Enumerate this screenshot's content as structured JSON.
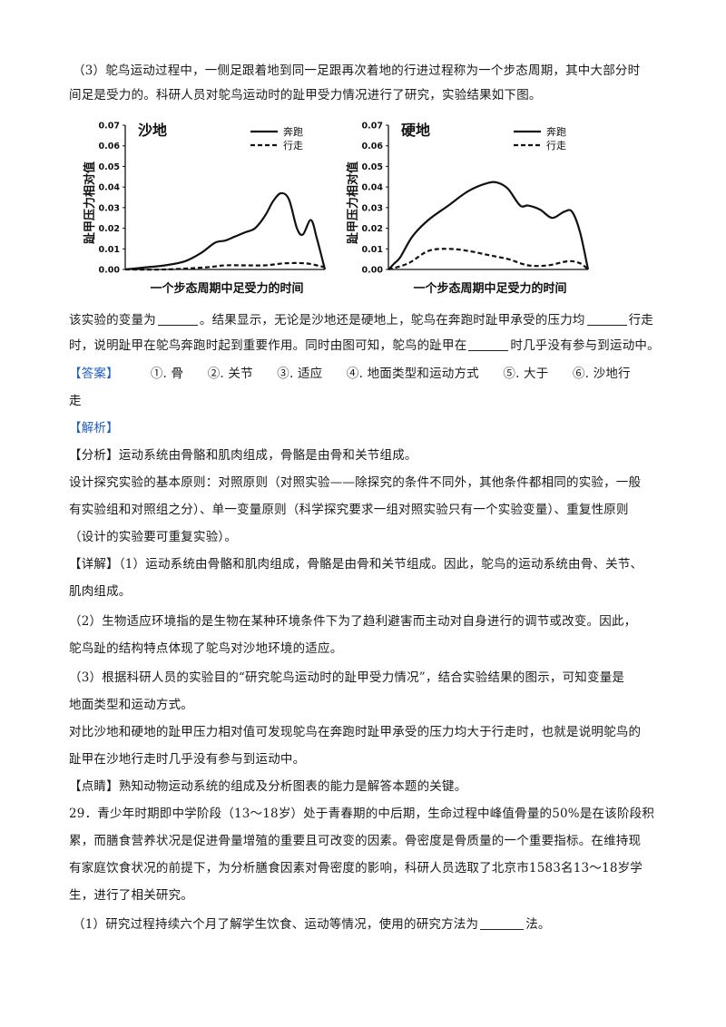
{
  "intro": {
    "line1": "（3）鸵鸟运动过程中，一侧足跟着地到同一足跟再次着地的行进过程称为一个步态周期，其中大部分时",
    "line2": "间足是受力的。科研人员对鸵鸟运动时的趾甲受力情况进行了研究，实验结果如下图。"
  },
  "charts": {
    "ylabel": "趾甲压力相对值",
    "xlabel": "一个步态周期中足受力的时间",
    "yticks": [
      "0.07",
      "0.06",
      "0.05",
      "0.04",
      "0.03",
      "0.02",
      "0.01",
      "0.00"
    ],
    "legend": {
      "run": "奔跑",
      "walk": "行走"
    },
    "panels": [
      {
        "title": "沙地"
      },
      {
        "title": "硬地"
      }
    ]
  },
  "chart_data": [
    {
      "type": "line",
      "title": "沙地",
      "xlabel": "一个步态周期中足受力的时间",
      "ylabel": "趾甲压力相对值",
      "ylim": [
        0,
        0.07
      ],
      "legend_position": "top-right",
      "series": [
        {
          "name": "奔跑",
          "style": "solid",
          "x": [
            0,
            0.1,
            0.2,
            0.3,
            0.38,
            0.45,
            0.5,
            0.55,
            0.6,
            0.65,
            0.7,
            0.74,
            0.78,
            0.82,
            0.86,
            0.89,
            0.93,
            0.96,
            1.0
          ],
          "values": [
            0.0,
            0.001,
            0.002,
            0.004,
            0.008,
            0.013,
            0.014,
            0.016,
            0.018,
            0.02,
            0.026,
            0.033,
            0.037,
            0.034,
            0.02,
            0.017,
            0.024,
            0.015,
            0.0
          ]
        },
        {
          "name": "行走",
          "style": "dashed",
          "x": [
            0,
            0.2,
            0.4,
            0.5,
            0.6,
            0.7,
            0.8,
            0.9,
            0.96,
            1.0
          ],
          "values": [
            0.0,
            0.0,
            0.001,
            0.002,
            0.002,
            0.002,
            0.003,
            0.003,
            0.002,
            0.001
          ]
        }
      ]
    },
    {
      "type": "line",
      "title": "硬地",
      "xlabel": "一个步态周期中足受力的时间",
      "ylabel": "趾甲压力相对值",
      "ylim": [
        0,
        0.07
      ],
      "legend_position": "top-right",
      "series": [
        {
          "name": "奔跑",
          "style": "solid",
          "x": [
            0,
            0.03,
            0.06,
            0.12,
            0.2,
            0.3,
            0.4,
            0.5,
            0.55,
            0.6,
            0.66,
            0.7,
            0.76,
            0.82,
            0.88,
            0.92,
            0.96,
            1.0
          ],
          "values": [
            0.0,
            0.003,
            0.006,
            0.016,
            0.024,
            0.031,
            0.038,
            0.042,
            0.042,
            0.039,
            0.031,
            0.031,
            0.029,
            0.025,
            0.028,
            0.028,
            0.018,
            0.0
          ]
        },
        {
          "name": "行走",
          "style": "dashed",
          "x": [
            0,
            0.1,
            0.2,
            0.3,
            0.4,
            0.5,
            0.6,
            0.7,
            0.8,
            0.9,
            0.96,
            1.0
          ],
          "values": [
            0.0,
            0.003,
            0.009,
            0.01,
            0.009,
            0.007,
            0.005,
            0.002,
            0.002,
            0.004,
            0.003,
            0.0
          ]
        }
      ]
    }
  ],
  "question": {
    "q1_a": "该实验的变量为",
    "q1_b": "。结果显示，无论是沙地还是硬地上，鸵鸟在奔跑时趾甲承受的压力均",
    "q1_c": "行走",
    "q2_a": "时，说明趾甲在鸵鸟奔跑时起到重要作用。同时由图可知，鸵鸟的趾甲在",
    "q2_b": "时几乎没有参与到运动中。"
  },
  "answer": {
    "label": "【答案】",
    "items": [
      "①. 骨",
      "②. 关节",
      "③. 适应",
      "④. 地面类型和运动方式",
      "⑤. 大于",
      "⑥. 沙地行"
    ],
    "tail": "走"
  },
  "analysis": {
    "label": "【解析】",
    "fenxi_label": "【分析】",
    "fenxi": "运动系统由骨骼和肌肉组成，骨骼是由骨和关节组成。",
    "principle1": "设计探究实验的基本原则：对照原则（对照实验——除探究的条件不同外，其他条件都相同的实验，一般",
    "principle2": "有实验组和对照组之分）、单一变量原则（科学探究要求一组对照实验只有一个实验变量）、重复性原则",
    "principle3": "（设计的实验要可重复实验）。",
    "xiangjie_label": "【详解】",
    "d1a": "（1）运动系统由骨骼和肌肉组成，骨骼是由骨和关节组成。因此，鸵鸟的运动系统由骨、关节、",
    "d1b": "肌肉组成。",
    "d2a": "（2）生物适应环境指的是生物在某种环境条件下为了趋利避害而主动对自身进行的调节或改变。因此，",
    "d2b": "鸵鸟趾的结构特点体现了鸵鸟对沙地环境的适应。",
    "d3a": "（3）根据科研人员的实验目的“研究鸵鸟运动时的趾甲受力情况”，结合实验结果的图示，可知变量是",
    "d3b": "地面类型和运动方式。",
    "d4a": "对比沙地和硬地的趾甲压力相对值可发现鸵鸟在奔跑时趾甲承受的压力均大于行走时，也就是说明鸵鸟的",
    "d4b": "趾甲在沙地行走时几乎没有参与到运动中。",
    "dianjing_label": "【点睛】",
    "dianjing": "熟知动物运动系统的组成及分析图表的能力是解答本题的关键。"
  },
  "q29": {
    "l1": "29．青少年时期即中学阶段（13～18岁）处于青春期的中后期，生命过程中峰值骨量的50%是在该阶段积",
    "l2": "累，而膳食营养状况是促进骨量增殖的重要且可改变的因素。骨密度是骨质量的一个重要指标。在维持现",
    "l3": "有家庭饮食状况的前提下，为分析膳食因素对骨密度的影响，科研人员选取了北京市1583名13～18岁学",
    "l4": "生，进行了相关研究。",
    "s1a": "（1）研究过程持续六个月了解学生饮食、运动等情况，使用的研究方法为",
    "s1b": "法。"
  },
  "colors": {
    "tag": "#1f5fbf",
    "text": "#1a1a1a",
    "line": "#111111"
  }
}
